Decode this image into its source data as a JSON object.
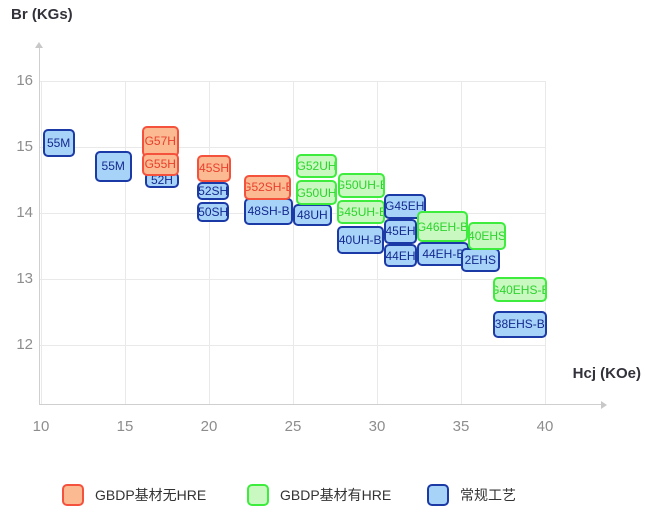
{
  "chart_data": {
    "type": "scatter",
    "title": "",
    "xlabel": "Hcj (KOe)",
    "ylabel": "Br (KGs)",
    "x_ticks": [
      10,
      15,
      20,
      25,
      30,
      35,
      40
    ],
    "y_ticks": [
      12,
      13,
      14,
      15,
      16
    ],
    "xlim": [
      10,
      42
    ],
    "ylim": [
      11.6,
      16.5
    ],
    "grid": true,
    "legend_position": "bottom",
    "series_styles": {
      "gbdp_no_hre": {
        "label": "GBDP基材无HRE",
        "fill": "#fbba92",
        "border": "#f5523d",
        "text": "#e8402c"
      },
      "gbdp_hre": {
        "label": "GBDP基材有HRE",
        "fill": "#c9f8c0",
        "border": "#3dec3d",
        "text": "#2ed32e"
      },
      "conventional": {
        "label": "常规工艺",
        "fill": "#a7d3f8",
        "border": "#1b3aa6",
        "text": "#14298f"
      }
    },
    "boxes": [
      {
        "label": "55M",
        "series": "conventional",
        "hcj": [
          10.1,
          12.0
        ],
        "br": [
          14.85,
          15.27
        ]
      },
      {
        "label": "55M",
        "series": "conventional",
        "hcj": [
          13.2,
          15.4
        ],
        "br": [
          14.47,
          14.94
        ]
      },
      {
        "label": "G57H",
        "series": "gbdp_no_hre",
        "hcj": [
          16.0,
          18.2
        ],
        "br": [
          14.85,
          15.32
        ]
      },
      {
        "label": "52H",
        "series": "conventional",
        "hcj": [
          16.2,
          18.2
        ],
        "br": [
          14.38,
          14.62
        ]
      },
      {
        "label": "G55H",
        "series": "gbdp_no_hre",
        "hcj": [
          16.0,
          18.2
        ],
        "br": [
          14.56,
          14.91
        ]
      },
      {
        "label": "52SH",
        "series": "conventional",
        "hcj": [
          19.3,
          21.2
        ],
        "br": [
          14.2,
          14.47
        ]
      },
      {
        "label": "50SH",
        "series": "conventional",
        "hcj": [
          19.3,
          21.2
        ],
        "br": [
          13.86,
          14.17
        ]
      },
      {
        "label": "45SH",
        "series": "gbdp_no_hre",
        "hcj": [
          19.3,
          21.3
        ],
        "br": [
          14.47,
          14.88
        ]
      },
      {
        "label": "48SH-B",
        "series": "conventional",
        "hcj": [
          22.1,
          25.0
        ],
        "br": [
          13.82,
          14.23
        ]
      },
      {
        "label": "G52SH-B",
        "series": "gbdp_no_hre",
        "hcj": [
          22.1,
          24.9
        ],
        "br": [
          14.2,
          14.58
        ]
      },
      {
        "label": "48UH",
        "series": "conventional",
        "hcj": [
          25.0,
          27.3
        ],
        "br": [
          13.8,
          14.14
        ]
      },
      {
        "label": "G52UH",
        "series": "gbdp_hre",
        "hcj": [
          25.2,
          27.6
        ],
        "br": [
          14.53,
          14.89
        ]
      },
      {
        "label": "G50UH",
        "series": "gbdp_hre",
        "hcj": [
          25.2,
          27.6
        ],
        "br": [
          14.12,
          14.5
        ]
      },
      {
        "label": "G50UH-B",
        "series": "gbdp_hre",
        "hcj": [
          27.7,
          30.5
        ],
        "br": [
          14.23,
          14.61
        ]
      },
      {
        "label": "G45UH-B",
        "series": "gbdp_hre",
        "hcj": [
          27.6,
          30.5
        ],
        "br": [
          13.83,
          14.2
        ]
      },
      {
        "label": "40UH-B",
        "series": "conventional",
        "hcj": [
          27.6,
          30.4
        ],
        "br": [
          13.38,
          13.8
        ]
      },
      {
        "label": "G45EH",
        "series": "conventional",
        "hcj": [
          30.4,
          32.9
        ],
        "br": [
          13.91,
          14.29
        ]
      },
      {
        "label": "45EH",
        "series": "conventional",
        "hcj": [
          30.4,
          32.4
        ],
        "br": [
          13.53,
          13.91
        ]
      },
      {
        "label": "44EH",
        "series": "conventional",
        "hcj": [
          30.4,
          32.4
        ],
        "br": [
          13.18,
          13.53
        ]
      },
      {
        "label": "G46EH-B",
        "series": "gbdp_hre",
        "hcj": [
          32.4,
          35.4
        ],
        "br": [
          13.56,
          14.03
        ]
      },
      {
        "label": "44EH-B",
        "series": "conventional",
        "hcj": [
          32.4,
          35.5
        ],
        "br": [
          13.2,
          13.56
        ]
      },
      {
        "label": "2EHS",
        "series": "conventional",
        "hcj": [
          35.0,
          37.3
        ],
        "br": [
          13.11,
          13.47
        ]
      },
      {
        "label": "40EHS",
        "series": "gbdp_hre",
        "hcj": [
          35.4,
          37.7
        ],
        "br": [
          13.44,
          13.86
        ]
      },
      {
        "label": "G40EHS-B",
        "series": "gbdp_hre",
        "hcj": [
          36.9,
          40.1
        ],
        "br": [
          12.65,
          13.03
        ]
      },
      {
        "label": "38EHS-B",
        "series": "conventional",
        "hcj": [
          36.9,
          40.1
        ],
        "br": [
          12.11,
          12.52
        ]
      }
    ],
    "legend": [
      "GBDP基材无HRE",
      "GBDP基材有HRE",
      "常规工艺"
    ]
  }
}
